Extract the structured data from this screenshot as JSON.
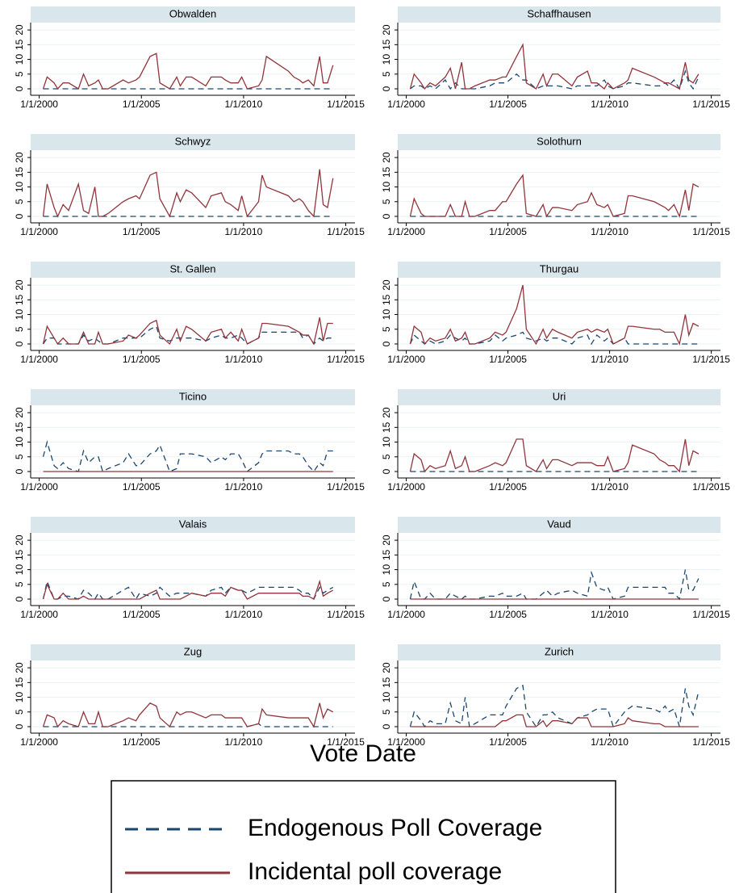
{
  "chart_data": {
    "type": "line",
    "x_label": "Vote Date",
    "x": [
      "2000-03-12",
      "2000-05-21",
      "2000-09-24",
      "2000-11-26",
      "2001-03-04",
      "2001-06-10",
      "2001-12-02",
      "2002-03-03",
      "2002-06-02",
      "2002-09-22",
      "2002-11-24",
      "2003-02-09",
      "2003-05-18",
      "2004-02-08",
      "2004-05-16",
      "2004-09-26",
      "2004-11-28",
      "2005-06-05",
      "2005-09-25",
      "2005-11-27",
      "2006-05-21",
      "2006-09-24",
      "2006-11-26",
      "2007-03-11",
      "2007-06-17",
      "2008-02-24",
      "2008-06-01",
      "2008-11-30",
      "2009-02-08",
      "2009-05-17",
      "2009-09-27",
      "2009-11-29",
      "2010-03-07",
      "2010-09-26",
      "2010-11-28",
      "2011-02-13",
      "2012-03-11",
      "2012-06-17",
      "2012-09-23",
      "2012-11-25",
      "2013-03-03",
      "2013-06-09",
      "2013-09-22",
      "2013-11-24",
      "2014-02-09",
      "2014-05-18"
    ],
    "xlim": [
      "1999-08-01",
      "2015-06-15"
    ],
    "xticks": [
      {
        "value": "2000-01-01",
        "label": "1/1/2000"
      },
      {
        "value": "2005-01-01",
        "label": "1/1/2005"
      },
      {
        "value": "2010-01-01",
        "label": "1/1/2010"
      },
      {
        "value": "2015-01-01",
        "label": "1/1/2015"
      }
    ],
    "ylim": [
      -2.2,
      22.5
    ],
    "yticks": [
      0,
      5,
      10,
      15,
      20
    ],
    "grid": true,
    "series": [
      {
        "name": "Endogenous Poll Coverage",
        "color": "#1a476f",
        "dashed": true
      },
      {
        "name": "Incidental poll coverage",
        "color": "#90353b",
        "dashed": false
      }
    ],
    "panels": [
      {
        "title": "Obwalden",
        "values": [
          [
            0,
            0,
            0,
            0,
            0,
            0,
            0,
            0,
            0,
            0,
            0,
            0,
            0,
            0,
            0,
            0,
            0,
            0,
            0,
            0,
            0,
            0,
            0,
            0,
            0,
            0,
            0,
            0,
            0,
            0,
            0,
            0,
            0,
            0,
            0,
            0,
            0,
            0,
            0,
            0,
            0,
            0,
            0,
            0,
            0,
            0
          ],
          [
            0,
            4,
            2,
            0,
            2,
            2,
            0,
            5,
            1,
            2,
            3,
            0,
            0,
            3,
            2,
            3,
            4,
            11,
            12,
            2,
            0,
            4,
            1,
            4,
            4,
            1,
            4,
            4,
            3,
            2,
            2,
            4,
            0,
            1,
            3,
            11,
            6,
            4,
            3,
            2,
            3,
            1,
            11,
            2,
            2,
            8
          ]
        ]
      },
      {
        "title": "Schaffhausen",
        "values": [
          [
            0,
            1,
            1,
            0,
            1,
            0,
            3,
            0,
            2,
            0,
            0,
            0,
            0,
            1,
            2,
            2,
            2,
            5,
            3,
            3,
            0,
            1,
            1,
            1,
            1,
            0,
            1,
            1,
            1,
            1,
            3,
            1,
            0,
            1,
            2,
            2,
            1,
            1,
            2,
            1,
            3,
            0,
            6,
            2,
            0,
            4
          ],
          [
            0,
            5,
            2,
            0,
            2,
            1,
            4,
            7,
            0,
            9,
            0,
            0,
            1,
            3,
            3,
            4,
            4,
            11,
            15,
            2,
            0,
            5,
            1,
            5,
            5,
            1,
            4,
            6,
            2,
            2,
            0,
            2,
            0,
            2,
            3,
            7,
            4,
            3,
            2,
            2,
            1,
            0,
            9,
            3,
            2,
            5
          ]
        ]
      },
      {
        "title": "Schwyz",
        "values": [
          [
            0,
            0,
            0,
            0,
            0,
            0,
            0,
            0,
            0,
            0,
            0,
            0,
            0,
            0,
            0,
            0,
            0,
            0,
            0,
            0,
            0,
            0,
            0,
            0,
            0,
            0,
            0,
            0,
            0,
            0,
            0,
            0,
            0,
            0,
            0,
            0,
            0,
            0,
            0,
            0,
            0,
            0,
            0,
            0,
            0,
            0
          ],
          [
            0,
            11,
            3,
            0,
            4,
            2,
            11,
            2,
            1,
            10,
            0,
            0,
            1,
            5,
            6,
            7,
            6,
            14,
            15,
            6,
            0,
            8,
            5,
            9,
            8,
            3,
            7,
            8,
            5,
            4,
            2,
            7,
            0,
            5,
            14,
            10,
            7,
            5,
            6,
            5,
            2,
            0,
            16,
            4,
            3,
            13
          ]
        ]
      },
      {
        "title": "Solothurn",
        "values": [
          [
            0,
            0,
            0,
            0,
            0,
            0,
            0,
            0,
            0,
            0,
            0,
            0,
            0,
            0,
            0,
            0,
            0,
            0,
            0,
            0,
            0,
            0,
            0,
            0,
            0,
            0,
            0,
            0,
            0,
            0,
            0,
            0,
            0,
            0,
            0,
            0,
            0,
            0,
            0,
            0,
            0,
            0,
            0,
            0,
            0,
            0
          ],
          [
            0,
            6,
            1,
            0,
            0,
            0,
            0,
            4,
            0,
            0,
            5,
            0,
            0,
            2,
            2,
            5,
            5,
            11,
            14,
            1,
            0,
            4,
            0,
            3,
            3,
            2,
            4,
            5,
            8,
            4,
            3,
            4,
            0,
            1,
            7,
            7,
            5,
            4,
            3,
            2,
            4,
            0,
            9,
            2,
            11,
            10
          ]
        ]
      },
      {
        "title": "St. Gallen",
        "values": [
          [
            0,
            2,
            2,
            0,
            0,
            0,
            0,
            3,
            1,
            2,
            1,
            0,
            0,
            2,
            2,
            2,
            2,
            5,
            6,
            2,
            1,
            2,
            2,
            2,
            2,
            1,
            2,
            3,
            2,
            2,
            3,
            2,
            0,
            2,
            4,
            4,
            4,
            4,
            4,
            2,
            3,
            0,
            2,
            1,
            2,
            2
          ],
          [
            0,
            6,
            2,
            0,
            2,
            0,
            0,
            4,
            0,
            0,
            4,
            0,
            0,
            1,
            3,
            2,
            3,
            7,
            8,
            3,
            0,
            5,
            1,
            6,
            5,
            1,
            4,
            5,
            2,
            4,
            1,
            5,
            0,
            2,
            7,
            7,
            6,
            5,
            4,
            3,
            3,
            0,
            9,
            1,
            7,
            7
          ]
        ]
      },
      {
        "title": "Thurgau",
        "values": [
          [
            0,
            3,
            1,
            0,
            1,
            0,
            1,
            3,
            2,
            1,
            2,
            0,
            0,
            1,
            3,
            1,
            2,
            3,
            4,
            2,
            1,
            2,
            1,
            2,
            2,
            0,
            2,
            3,
            0,
            3,
            1,
            2,
            0,
            2,
            0,
            0,
            0,
            0,
            0,
            0,
            0,
            0,
            0,
            0,
            0,
            0
          ],
          [
            0,
            6,
            4,
            0,
            2,
            1,
            2,
            5,
            1,
            2,
            4,
            0,
            0,
            2,
            4,
            3,
            4,
            12,
            20,
            5,
            0,
            5,
            2,
            5,
            4,
            2,
            4,
            5,
            4,
            5,
            4,
            5,
            0,
            2,
            6,
            6,
            5,
            5,
            4,
            4,
            4,
            0,
            10,
            3,
            7,
            6
          ]
        ]
      },
      {
        "title": "Ticino",
        "values": [
          [
            5,
            10,
            2,
            1,
            3,
            1,
            0,
            7,
            3,
            5,
            5,
            0,
            1,
            3,
            6,
            2,
            2,
            6,
            7,
            9,
            0,
            1,
            6,
            6,
            6,
            5,
            3,
            5,
            4,
            6,
            6,
            4,
            0,
            3,
            6,
            7,
            7,
            6,
            6,
            5,
            2,
            0,
            3,
            2,
            7,
            7
          ],
          [
            0,
            0,
            0,
            0,
            0,
            0,
            0,
            0,
            0,
            0,
            0,
            0,
            0,
            0,
            0,
            0,
            0,
            0,
            0,
            0,
            0,
            0,
            0,
            0,
            0,
            0,
            0,
            0,
            0,
            0,
            0,
            0,
            0,
            0,
            0,
            0,
            0,
            0,
            0,
            0,
            0,
            0,
            0,
            0,
            0,
            0
          ]
        ]
      },
      {
        "title": "Uri",
        "values": [
          [
            0,
            0,
            0,
            0,
            0,
            0,
            0,
            0,
            0,
            0,
            0,
            0,
            0,
            0,
            0,
            0,
            0,
            0,
            0,
            0,
            0,
            0,
            0,
            0,
            0,
            0,
            0,
            0,
            0,
            0,
            0,
            0,
            0,
            0,
            0,
            0,
            0,
            0,
            0,
            0,
            0,
            0,
            0,
            0,
            0,
            0
          ],
          [
            0,
            6,
            4,
            0,
            2,
            1,
            2,
            7,
            1,
            2,
            5,
            0,
            0,
            2,
            3,
            2,
            3,
            11,
            11,
            2,
            0,
            4,
            1,
            4,
            4,
            2,
            3,
            3,
            3,
            2,
            2,
            5,
            0,
            1,
            3,
            9,
            6,
            4,
            3,
            2,
            2,
            0,
            11,
            2,
            7,
            6
          ]
        ]
      },
      {
        "title": "Valais",
        "values": [
          [
            0,
            6,
            0,
            0,
            1,
            1,
            0,
            3,
            2,
            0,
            2,
            0,
            0,
            3,
            4,
            0,
            2,
            1,
            2,
            4,
            1,
            2,
            2,
            2,
            2,
            1,
            3,
            4,
            2,
            4,
            3,
            3,
            2,
            4,
            4,
            4,
            4,
            4,
            3,
            2,
            2,
            0,
            4,
            2,
            3,
            4
          ],
          [
            0,
            5,
            0,
            0,
            2,
            0,
            0,
            1,
            0,
            0,
            0,
            0,
            0,
            0,
            0,
            0,
            0,
            2,
            3,
            0,
            0,
            0,
            0,
            1,
            2,
            1,
            2,
            2,
            1,
            4,
            3,
            3,
            0,
            2,
            2,
            2,
            2,
            2,
            2,
            1,
            1,
            0,
            6,
            1,
            2,
            3
          ]
        ]
      },
      {
        "title": "Vaud",
        "values": [
          [
            0,
            6,
            0,
            0,
            2,
            0,
            0,
            2,
            1,
            0,
            1,
            0,
            0,
            1,
            1,
            2,
            1,
            1,
            2,
            0,
            0,
            2,
            3,
            1,
            2,
            3,
            2,
            1,
            9,
            4,
            3,
            4,
            0,
            1,
            4,
            4,
            4,
            4,
            4,
            2,
            2,
            0,
            10,
            3,
            3,
            7
          ],
          [
            0,
            0,
            0,
            0,
            0,
            0,
            0,
            0,
            0,
            0,
            0,
            0,
            0,
            0,
            0,
            0,
            0,
            0,
            0,
            0,
            0,
            0,
            0,
            0,
            0,
            0,
            0,
            0,
            0,
            0,
            0,
            0,
            0,
            0,
            0,
            0,
            0,
            0,
            0,
            0,
            0,
            0,
            0,
            0,
            0,
            0
          ]
        ]
      },
      {
        "title": "Zug",
        "values": [
          [
            0,
            0,
            0,
            0,
            0,
            0,
            0,
            0,
            0,
            0,
            0,
            0,
            0,
            0,
            0,
            0,
            0,
            0,
            0,
            0,
            0,
            0,
            0,
            0,
            0,
            0,
            0,
            0,
            0,
            0,
            0,
            0,
            0,
            1,
            0,
            0,
            0,
            0,
            0,
            0,
            0,
            0,
            0,
            0,
            0,
            0
          ],
          [
            0,
            4,
            3,
            0,
            2,
            1,
            0,
            5,
            1,
            1,
            5,
            0,
            0,
            2,
            3,
            2,
            4,
            8,
            7,
            3,
            0,
            5,
            4,
            5,
            5,
            3,
            4,
            4,
            3,
            3,
            3,
            3,
            0,
            1,
            6,
            4,
            3,
            3,
            3,
            3,
            3,
            0,
            8,
            3,
            6,
            5
          ]
        ]
      },
      {
        "title": "Zurich",
        "values": [
          [
            0,
            5,
            2,
            0,
            2,
            1,
            1,
            8,
            2,
            1,
            10,
            0,
            1,
            4,
            4,
            4,
            7,
            13,
            14,
            5,
            0,
            4,
            4,
            5,
            3,
            1,
            3,
            4,
            5,
            6,
            6,
            6,
            0,
            5,
            6,
            7,
            6,
            5,
            7,
            5,
            6,
            0,
            13,
            7,
            4,
            12
          ],
          [
            0,
            0,
            0,
            0,
            0,
            0,
            0,
            0,
            0,
            0,
            0,
            0,
            0,
            0,
            0,
            2,
            2,
            4,
            4,
            0,
            0,
            2,
            0,
            2,
            2,
            1,
            3,
            3,
            0,
            0,
            0,
            0,
            0,
            1,
            3,
            2,
            1,
            1,
            0,
            0,
            0,
            0,
            0,
            0,
            0,
            0
          ]
        ]
      }
    ]
  }
}
